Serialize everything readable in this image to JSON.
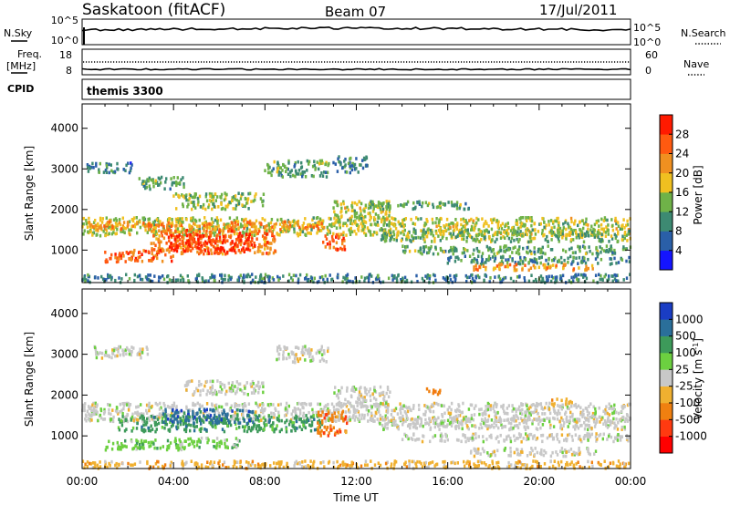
{
  "header": {
    "station": "Saskatoon (fitACF)",
    "beam": "Beam 07",
    "date": "17/Jul/2011"
  },
  "top_panels": {
    "noise": {
      "left_label": "N.Sky",
      "left_ticks": [
        "10^5",
        "10^0"
      ],
      "right_label": "N.Search",
      "right_ticks": [
        "10^5",
        "10^0"
      ]
    },
    "freq": {
      "left_label_line1": "Freq.",
      "left_label_line2": "[MHz]",
      "left_ticks": [
        "18",
        "8"
      ],
      "right_label": "Nave",
      "right_ticks": [
        "60",
        "0"
      ]
    },
    "cpid": {
      "label": "CPID",
      "value": "themis 3300"
    }
  },
  "chart_data": [
    {
      "type": "heatmap",
      "panel": "power",
      "xlabel": "",
      "ylabel": "Slant Range [km]",
      "xlim_hours": [
        0,
        24
      ],
      "ylim": [
        200,
        4600
      ],
      "yticks": [
        "1000",
        "2000",
        "3000",
        "4000"
      ],
      "colorbar": {
        "label": "Power [dB]",
        "tick_labels": [
          "4",
          "8",
          "12",
          "16",
          "20",
          "24",
          "28"
        ],
        "tick_values": [
          4,
          8,
          12,
          16,
          20,
          24,
          28
        ],
        "range": [
          0,
          32
        ],
        "colors": [
          "#1414ff",
          "#2a5fa8",
          "#3d8a72",
          "#6fb248",
          "#f0c020",
          "#f09020",
          "#ff5a10",
          "#ff1a00"
        ]
      },
      "bands": [
        {
          "t0": 0.0,
          "t1": 24.0,
          "r0": 1350,
          "r1": 1800,
          "v": 16
        },
        {
          "t0": 0.3,
          "t1": 10.5,
          "r0": 1500,
          "r1": 1700,
          "v": 22
        },
        {
          "t0": 3.0,
          "t1": 8.5,
          "r0": 900,
          "r1": 1500,
          "v": 24
        },
        {
          "t0": 3.8,
          "t1": 7.5,
          "r0": 950,
          "r1": 1400,
          "v": 29
        },
        {
          "t0": 1.0,
          "t1": 4.0,
          "r0": 700,
          "r1": 1000,
          "v": 26
        },
        {
          "t0": 0.2,
          "t1": 2.2,
          "r0": 2900,
          "r1": 3150,
          "v": 8
        },
        {
          "t0": 2.5,
          "t1": 4.5,
          "r0": 2500,
          "r1": 2800,
          "v": 12
        },
        {
          "t0": 4.0,
          "t1": 8.0,
          "r0": 2000,
          "r1": 2400,
          "v": 14
        },
        {
          "t0": 8.0,
          "t1": 10.8,
          "r0": 2800,
          "r1": 3200,
          "v": 12
        },
        {
          "t0": 10.5,
          "t1": 11.5,
          "r0": 1000,
          "r1": 1400,
          "v": 26
        },
        {
          "t0": 11.0,
          "t1": 13.5,
          "r0": 1600,
          "r1": 2200,
          "v": 16
        },
        {
          "t0": 13.0,
          "t1": 24.0,
          "r0": 1200,
          "r1": 1500,
          "v": 14
        },
        {
          "t0": 14.0,
          "t1": 24.0,
          "r0": 900,
          "r1": 1100,
          "v": 12
        },
        {
          "t0": 16.0,
          "t1": 24.0,
          "r0": 650,
          "r1": 850,
          "v": 10
        },
        {
          "t0": 17.0,
          "t1": 22.5,
          "r0": 500,
          "r1": 650,
          "v": 21
        },
        {
          "t0": 0.0,
          "t1": 24.0,
          "r0": 200,
          "r1": 400,
          "v": 9
        },
        {
          "t0": 12.5,
          "t1": 17.0,
          "r0": 2000,
          "r1": 2200,
          "v": 12
        },
        {
          "t0": 11.0,
          "t1": 12.5,
          "r0": 2900,
          "r1": 3300,
          "v": 10
        }
      ]
    },
    {
      "type": "heatmap",
      "panel": "velocity",
      "xlabel": "Time UT",
      "ylabel": "Slant Range [km]",
      "xlim_hours": [
        0,
        24
      ],
      "xticks": [
        "00:00",
        "04:00",
        "08:00",
        "12:00",
        "16:00",
        "20:00",
        "00:00"
      ],
      "ylim": [
        200,
        4600
      ],
      "yticks": [
        "1000",
        "2000",
        "3000",
        "4000"
      ],
      "colorbar": {
        "label": "Velocity [m s-1]",
        "label_main": "Velocity [m s",
        "label_sup": "-1",
        "label_end": "]",
        "tick_labels": [
          "1000",
          "500",
          "100",
          "25",
          "-25",
          "-100",
          "-500",
          "-1000"
        ],
        "colors": [
          "#1a3dc4",
          "#2a6f9a",
          "#3d9a5a",
          "#6cd040",
          "#c8c8c8",
          "#f0b030",
          "#f08010",
          "#ff3a10",
          "#ff0000"
        ]
      },
      "bands": [
        {
          "t0": 0.0,
          "t1": 24.0,
          "r0": 1350,
          "r1": 1800,
          "c": 4
        },
        {
          "t0": 0.5,
          "t1": 3.0,
          "r0": 2900,
          "r1": 3200,
          "c": 4
        },
        {
          "t0": 1.5,
          "t1": 10.5,
          "r0": 1100,
          "r1": 1500,
          "c": 2
        },
        {
          "t0": 3.5,
          "t1": 7.5,
          "r0": 1300,
          "r1": 1650,
          "c": 1
        },
        {
          "t0": 1.0,
          "t1": 4.5,
          "r0": 650,
          "r1": 900,
          "c": 3
        },
        {
          "t0": 4.0,
          "t1": 7.0,
          "r0": 700,
          "r1": 950,
          "c": 3
        },
        {
          "t0": 10.3,
          "t1": 11.6,
          "r0": 1000,
          "r1": 1600,
          "c": 6
        },
        {
          "t0": 11.0,
          "t1": 13.5,
          "r0": 1700,
          "r1": 2200,
          "c": 4
        },
        {
          "t0": 13.0,
          "t1": 24.0,
          "r0": 1150,
          "r1": 1450,
          "c": 4
        },
        {
          "t0": 14.0,
          "t1": 24.0,
          "r0": 850,
          "r1": 1050,
          "c": 4
        },
        {
          "t0": 17.0,
          "t1": 22.5,
          "r0": 500,
          "r1": 700,
          "c": 4
        },
        {
          "t0": 0.0,
          "t1": 24.0,
          "r0": 200,
          "r1": 380,
          "c": 5
        },
        {
          "t0": 8.5,
          "t1": 10.8,
          "r0": 2800,
          "r1": 3200,
          "c": 4
        },
        {
          "t0": 4.5,
          "t1": 8.0,
          "r0": 2000,
          "r1": 2350,
          "c": 4
        },
        {
          "t0": 15.0,
          "t1": 15.8,
          "r0": 2000,
          "r1": 2150,
          "c": 6
        },
        {
          "t0": 20.5,
          "t1": 21.5,
          "r0": 1750,
          "r1": 1900,
          "c": 5
        }
      ]
    }
  ]
}
